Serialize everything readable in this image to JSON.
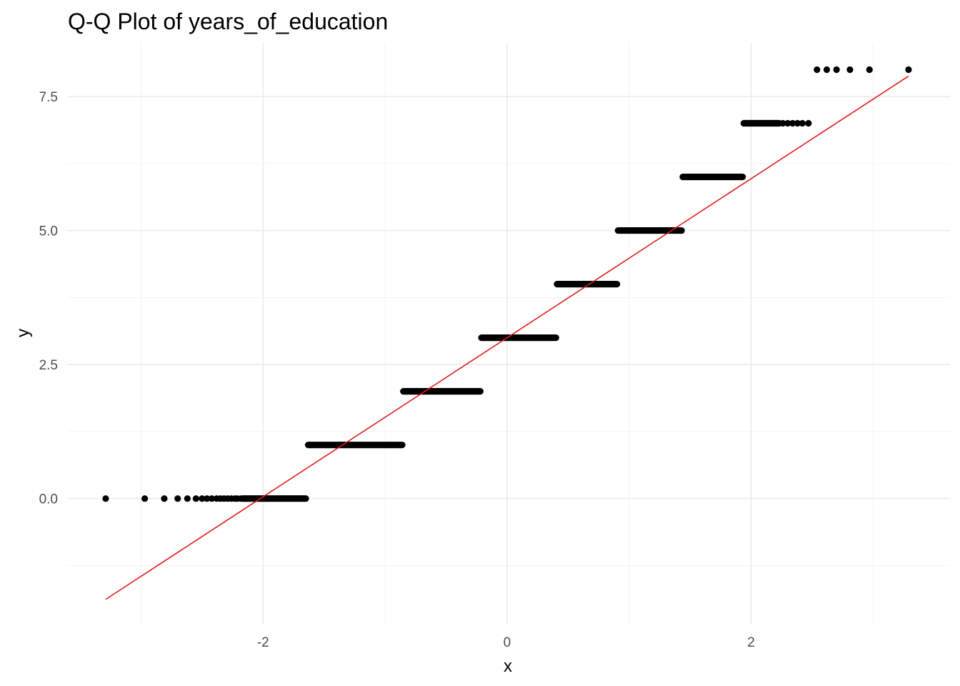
{
  "chart_data": {
    "type": "scatter",
    "title": "Q-Q Plot of years_of_education",
    "xlabel": "x",
    "ylabel": "y",
    "xlim": [
      -3.6,
      3.63
    ],
    "ylim": [
      -2.35,
      8.5
    ],
    "x_ticks": [
      {
        "value": -2,
        "label": "-2"
      },
      {
        "value": 0,
        "label": "0"
      },
      {
        "value": 2,
        "label": "2"
      }
    ],
    "y_ticks": [
      {
        "value": 0,
        "label": "0.0"
      },
      {
        "value": 2.5,
        "label": "2.5"
      },
      {
        "value": 5,
        "label": "5.0"
      },
      {
        "value": 7.5,
        "label": "7.5"
      }
    ],
    "x_minor": [
      -3,
      -1,
      1,
      3
    ],
    "y_minor": [
      -1.25,
      1.25,
      3.75,
      6.25
    ],
    "grid": true,
    "legend": "none",
    "point_color": "#000000",
    "line_color": "#e41a1c",
    "series": [
      {
        "values_by_level": [
          {
            "y": 0,
            "x": [
              -3.29,
              -2.97,
              -2.81,
              -2.7,
              -2.62,
              -2.55,
              -2.5,
              -2.46,
              -2.42,
              -2.38,
              -2.35,
              -2.32,
              -2.29,
              -2.26,
              -2.23,
              -2.21,
              -2.18,
              -2.16
            ],
            "run": [
              -2.16,
              -1.65
            ]
          },
          {
            "y": 1,
            "run": [
              -1.63,
              -0.86
            ]
          },
          {
            "y": 2,
            "run": [
              -0.85,
              -0.22
            ]
          },
          {
            "y": 3,
            "run": [
              -0.21,
              0.4
            ]
          },
          {
            "y": 4,
            "run": [
              0.41,
              0.9
            ]
          },
          {
            "y": 5,
            "run": [
              0.91,
              1.43
            ]
          },
          {
            "y": 6,
            "run": [
              1.44,
              1.93
            ]
          },
          {
            "y": 7,
            "run": [
              1.94,
              2.23
            ],
            "x": [
              2.26,
              2.3,
              2.34,
              2.38,
              2.42,
              2.47
            ]
          },
          {
            "y": 8,
            "x": [
              2.54,
              2.62,
              2.7,
              2.81,
              2.97,
              3.29
            ]
          }
        ]
      }
    ],
    "reference_line": {
      "x": [
        -3.29,
        3.29
      ],
      "y": [
        -1.88,
        7.88
      ]
    }
  }
}
